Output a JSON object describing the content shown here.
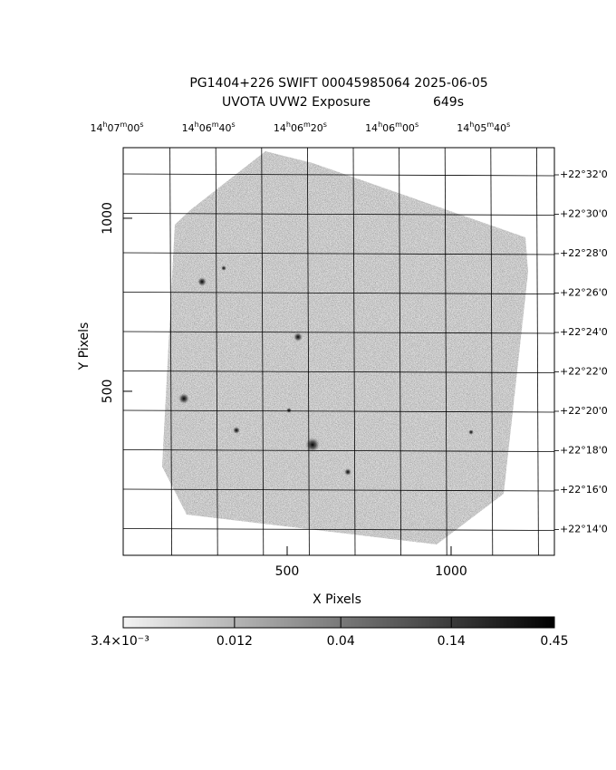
{
  "chart_data": {
    "type": "image",
    "title": "PG1404+226 SWIFT 00045985064 2025-06-05",
    "subtitle": "UVOTA UVW2 Exposure",
    "exposure": "649s",
    "xlabel": "X Pixels",
    "ylabel": "Y Pixels",
    "xlim": [
      0,
      1315
    ],
    "ylim": [
      26,
      1204
    ],
    "xticks": [
      500,
      1000
    ],
    "yticks": [
      500,
      1000
    ],
    "ra_labels": [
      "14h07m00s",
      "14h06m40s",
      "14h06m20s",
      "14h06m00s",
      "14h05m40s"
    ],
    "dec_labels": [
      "+22°32'0",
      "+22°30'0",
      "+22°28'0",
      "+22°26'0",
      "+22°24'0",
      "+22°22'0",
      "+22°20'0",
      "+22°18'0",
      "+22°16'0",
      "+22°14'0"
    ],
    "colorbar": {
      "lim": [
        0.0034,
        0.45
      ],
      "log": true,
      "colors": [
        "#f4f4f4",
        "#000000"
      ],
      "ticks": [
        {
          "value": 0.0034,
          "label": "3.4×10⁻³"
        },
        0.012,
        0.04,
        0.14,
        0.45
      ]
    }
  }
}
